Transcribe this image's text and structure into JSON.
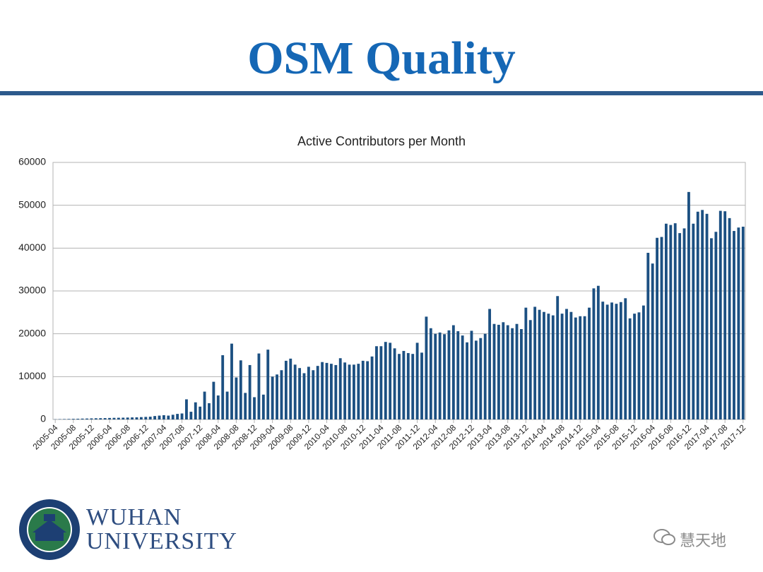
{
  "slide_title": "OSM Quality",
  "chart_data": {
    "type": "bar",
    "title": "Active Contributors per Month",
    "color": "#1c5082",
    "grid": true,
    "ylim": [
      0,
      60000
    ],
    "yticks": [
      0,
      10000,
      20000,
      30000,
      40000,
      50000,
      60000
    ],
    "categories": [
      "2005-04",
      null,
      null,
      null,
      "2005-08",
      null,
      null,
      null,
      "2005-12",
      null,
      null,
      null,
      "2006-04",
      null,
      null,
      null,
      "2006-08",
      null,
      null,
      null,
      "2006-12",
      null,
      null,
      null,
      "2007-04",
      null,
      null,
      null,
      "2007-08",
      null,
      null,
      null,
      "2007-12",
      null,
      null,
      null,
      "2008-04",
      null,
      null,
      null,
      "2008-08",
      null,
      null,
      null,
      "2008-12",
      null,
      null,
      null,
      "2009-04",
      null,
      null,
      null,
      "2009-08",
      null,
      null,
      null,
      "2009-12",
      null,
      null,
      null,
      "2010-04",
      null,
      null,
      null,
      "2010-08",
      null,
      null,
      null,
      "2010-12",
      null,
      null,
      null,
      "2011-04",
      null,
      null,
      null,
      "2011-08",
      null,
      null,
      null,
      "2011-12",
      null,
      null,
      null,
      "2012-04",
      null,
      null,
      null,
      "2012-08",
      null,
      null,
      null,
      "2012-12",
      null,
      null,
      null,
      "2013-04",
      null,
      null,
      null,
      "2013-08",
      null,
      null,
      null,
      "2013-12",
      null,
      null,
      null,
      "2014-04",
      null,
      null,
      null,
      "2014-08",
      null,
      null,
      null,
      "2014-12",
      null,
      null,
      null,
      "2015-04",
      null,
      null,
      null,
      "2015-08",
      null,
      null,
      null,
      "2015-12",
      null,
      null,
      null,
      "2016-04",
      null,
      null,
      null,
      "2016-08",
      null,
      null,
      null,
      "2016-12",
      null,
      null,
      null,
      "2017-04",
      null,
      null,
      null,
      "2017-08",
      null,
      null,
      null,
      "2017-12"
    ],
    "values": [
      50,
      80,
      100,
      120,
      150,
      170,
      200,
      220,
      250,
      280,
      300,
      320,
      350,
      380,
      400,
      420,
      450,
      480,
      500,
      550,
      600,
      650,
      800,
      900,
      1000,
      900,
      1100,
      1300,
      1400,
      4700,
      1800,
      4000,
      3000,
      6500,
      3800,
      8800,
      5600,
      15000,
      6500,
      17700,
      9800,
      13800,
      6200,
      12700,
      5200,
      15400,
      5800,
      16300,
      10000,
      10500,
      11500,
      13700,
      14200,
      12800,
      12000,
      10800,
      12300,
      11500,
      12500,
      13400,
      13200,
      13000,
      12700,
      14300,
      13300,
      12800,
      12800,
      13000,
      13700,
      13600,
      14700,
      17100,
      17100,
      18100,
      17900,
      16600,
      15300,
      16000,
      15500,
      15300,
      17900,
      15600,
      24000,
      21300,
      20000,
      20300,
      19900,
      20800,
      22000,
      20600,
      19600,
      18000,
      20700,
      18400,
      19000,
      20000,
      25800,
      22300,
      22100,
      22700,
      22000,
      21300,
      22300,
      21100,
      26100,
      23200,
      26300,
      25600,
      25100,
      24700,
      24300,
      28800,
      24700,
      25800,
      25100,
      23800,
      24100,
      24100,
      26100,
      30600,
      31200,
      27500,
      26800,
      27300,
      27000,
      27400,
      28300,
      23600,
      24700,
      25000,
      26600,
      38900,
      36400,
      42400,
      42600,
      45700,
      45400,
      45800,
      43500,
      44600,
      53100,
      45700,
      48500,
      48900,
      48000,
      42300,
      43800,
      48700,
      48600,
      47000,
      44000,
      44800,
      45000
    ]
  },
  "logo": {
    "line1": "WUHAN",
    "line2": "UNIVERSITY"
  },
  "watermark": "慧天地"
}
